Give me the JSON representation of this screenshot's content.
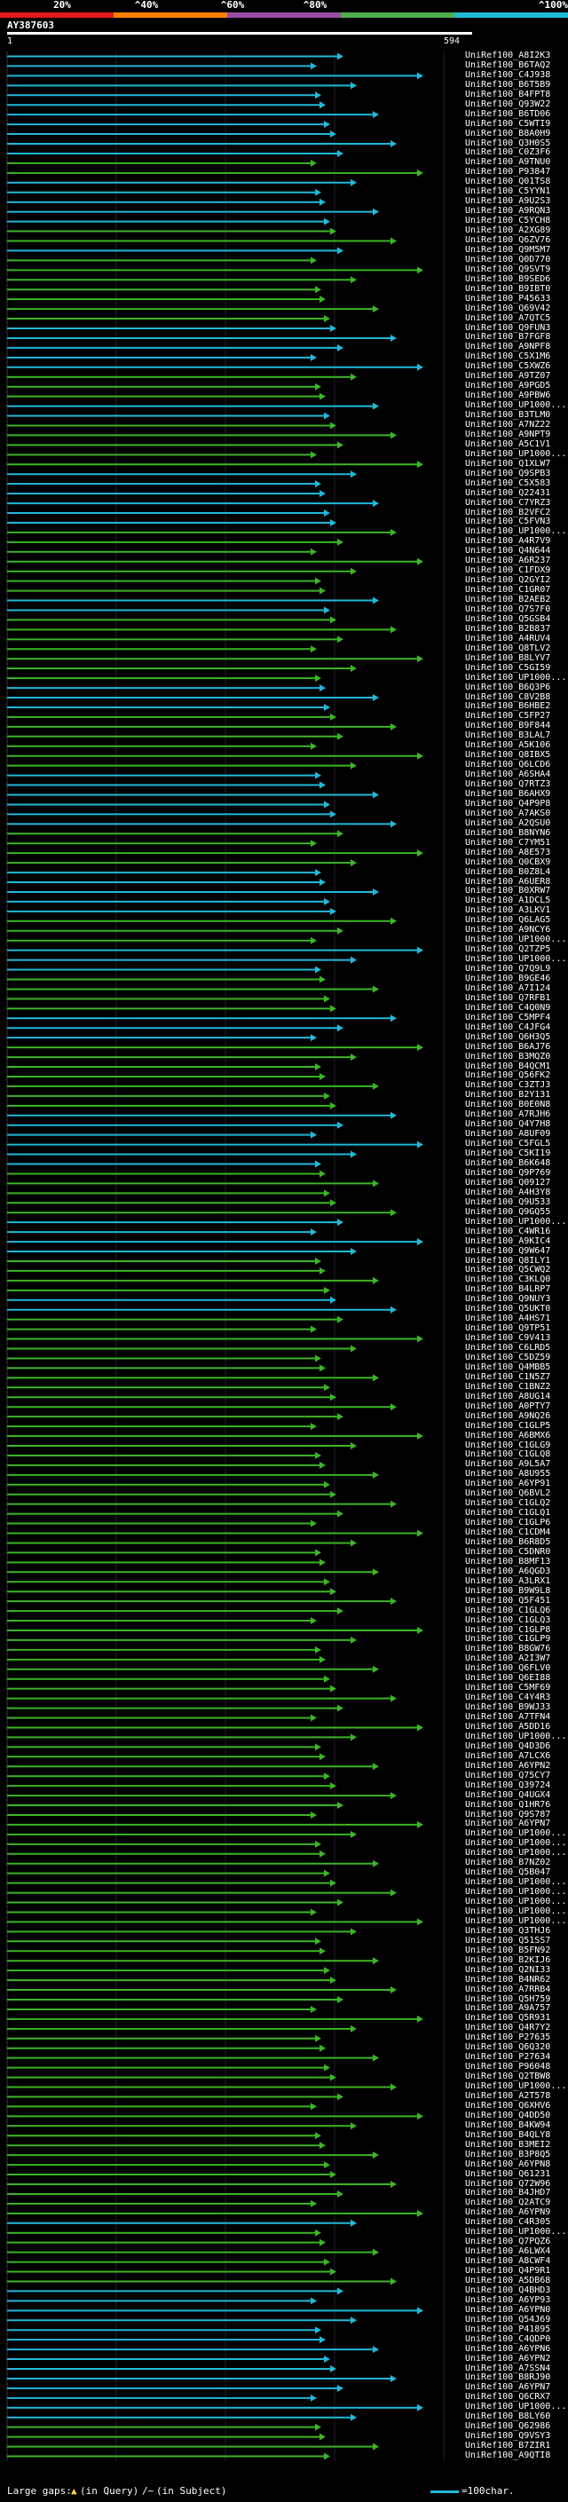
{
  "header": {
    "scale_labels": [
      "20%",
      "^40%",
      "^60%",
      "^80%",
      "^100%"
    ],
    "scale_colors": [
      "#e41a1c",
      "#ff7f00",
      "#984ea3",
      "#4daf4a",
      "#21b9d9"
    ],
    "query_id": "AY387603",
    "ruler_start": "1",
    "ruler_end": "594"
  },
  "colors": {
    "cyan": "#21b9d9",
    "green": "#3cb526",
    "query": "#ffffff"
  },
  "hits": [
    {
      "id": "UniRef100_A8I2K3",
      "pct": 100
    },
    {
      "id": "UniRef100_B6TAQ2",
      "pct": 100
    },
    {
      "id": "UniRef100_C4J938",
      "pct": 100
    },
    {
      "id": "UniRef100_B6T5B9",
      "pct": 100
    },
    {
      "id": "UniRef100_B4FPT8",
      "pct": 100
    },
    {
      "id": "UniRef100_Q93W22",
      "pct": 100
    },
    {
      "id": "UniRef100_B6TD06",
      "pct": 100
    },
    {
      "id": "UniRef100_C5WTI9",
      "pct": 100
    },
    {
      "id": "UniRef100_B8A0H9",
      "pct": 100
    },
    {
      "id": "UniRef100_Q3H0S5",
      "pct": 100
    },
    {
      "id": "UniRef100_C0Z3F6",
      "pct": 100
    },
    {
      "id": "UniRef100_A9TNU0",
      "pct": 80
    },
    {
      "id": "UniRef100_P93847",
      "pct": 80
    },
    {
      "id": "UniRef100_Q01TS8",
      "pct": 100
    },
    {
      "id": "UniRef100_C5YYN1",
      "pct": 100
    },
    {
      "id": "UniRef100_A9U2S3",
      "pct": 100
    },
    {
      "id": "UniRef100_A9RQN3",
      "pct": 100
    },
    {
      "id": "UniRef100_C5YCH8",
      "pct": 100
    },
    {
      "id": "UniRef100_A2XG89",
      "pct": 80
    },
    {
      "id": "UniRef100_Q6ZV76",
      "pct": 80
    },
    {
      "id": "UniRef100_Q9M5M7",
      "pct": 100
    },
    {
      "id": "UniRef100_Q0D770",
      "pct": 80
    },
    {
      "id": "UniRef100_Q9SVT9",
      "pct": 80
    },
    {
      "id": "UniRef100_B9SED6",
      "pct": 80
    },
    {
      "id": "UniRef100_B9IBT0",
      "pct": 80
    },
    {
      "id": "UniRef100_P45633",
      "pct": 80
    },
    {
      "id": "UniRef100_Q69V42",
      "pct": 80
    },
    {
      "id": "UniRef100_A7QTC5",
      "pct": 80
    },
    {
      "id": "UniRef100_Q9FUN3",
      "pct": 100
    },
    {
      "id": "UniRef100_B7FGF8",
      "pct": 100
    },
    {
      "id": "UniRef100_A9NPF8",
      "pct": 100
    },
    {
      "id": "UniRef100_C5X1M6",
      "pct": 100
    },
    {
      "id": "UniRef100_C5XWZ6",
      "pct": 100
    },
    {
      "id": "UniRef100_A9TZ07",
      "pct": 80
    },
    {
      "id": "UniRef100_A9PGD5",
      "pct": 80
    },
    {
      "id": "UniRef100_A9PBW6",
      "pct": 80
    },
    {
      "id": "UniRef100_UP1000...",
      "pct": 100
    },
    {
      "id": "UniRef100_B3TLM0",
      "pct": 100
    },
    {
      "id": "UniRef100_A7NZ22",
      "pct": 80
    },
    {
      "id": "UniRef100_A9NPT9",
      "pct": 80
    },
    {
      "id": "UniRef100_A5C1V1",
      "pct": 80
    },
    {
      "id": "UniRef100_UP1000...",
      "pct": 80
    },
    {
      "id": "UniRef100_Q1XLW7",
      "pct": 80
    },
    {
      "id": "UniRef100_Q9SPB3",
      "pct": 100
    },
    {
      "id": "UniRef100_C5X583",
      "pct": 100
    },
    {
      "id": "UniRef100_Q22431",
      "pct": 100
    },
    {
      "id": "UniRef100_C7YRZ3",
      "pct": 100
    },
    {
      "id": "UniRef100_B2VFC2",
      "pct": 100
    },
    {
      "id": "UniRef100_C5FVN3",
      "pct": 100
    },
    {
      "id": "UniRef100_UP1000...",
      "pct": 80
    },
    {
      "id": "UniRef100_A4R7V9",
      "pct": 80
    },
    {
      "id": "UniRef100_Q4N644",
      "pct": 80
    },
    {
      "id": "UniRef100_A6R237",
      "pct": 80
    },
    {
      "id": "UniRef100_C1FDX9",
      "pct": 80
    },
    {
      "id": "UniRef100_Q2GYI2",
      "pct": 80
    },
    {
      "id": "UniRef100_C1GR07",
      "pct": 80
    },
    {
      "id": "UniRef100_B2AEB2",
      "pct": 100
    },
    {
      "id": "UniRef100_Q7S7F0",
      "pct": 100
    },
    {
      "id": "UniRef100_Q5GSB4",
      "pct": 80
    },
    {
      "id": "UniRef100_B2B837",
      "pct": 80
    },
    {
      "id": "UniRef100_A4RUV4",
      "pct": 80
    },
    {
      "id": "UniRef100_Q8TLV2",
      "pct": 80
    },
    {
      "id": "UniRef100_B8LYV7",
      "pct": 80
    },
    {
      "id": "UniRef100_C5GI59",
      "pct": 80
    },
    {
      "id": "UniRef100_UP1000...",
      "pct": 80
    },
    {
      "id": "UniRef100_B6Q3P6",
      "pct": 100
    },
    {
      "id": "UniRef100_C8V2B8",
      "pct": 100
    },
    {
      "id": "UniRef100_B6HBE2",
      "pct": 100
    },
    {
      "id": "UniRef100_C5FP27",
      "pct": 80
    },
    {
      "id": "UniRef100_B9F844",
      "pct": 80
    },
    {
      "id": "UniRef100_B3LAL7",
      "pct": 80
    },
    {
      "id": "UniRef100_A5K106",
      "pct": 80
    },
    {
      "id": "UniRef100_Q8IBX5",
      "pct": 80
    },
    {
      "id": "UniRef100_Q6LCD6",
      "pct": 80
    },
    {
      "id": "UniRef100_A6SHA4",
      "pct": 100
    },
    {
      "id": "UniRef100_Q7RTZ3",
      "pct": 100
    },
    {
      "id": "UniRef100_B6AHX9",
      "pct": 100
    },
    {
      "id": "UniRef100_Q4P9P8",
      "pct": 100
    },
    {
      "id": "UniRef100_A7AKS0",
      "pct": 100
    },
    {
      "id": "UniRef100_A2QSU0",
      "pct": 100
    },
    {
      "id": "UniRef100_B8NYN6",
      "pct": 80
    },
    {
      "id": "UniRef100_C7YM51",
      "pct": 80
    },
    {
      "id": "UniRef100_A8E573",
      "pct": 80
    },
    {
      "id": "UniRef100_Q0CBX9",
      "pct": 80
    },
    {
      "id": "UniRef100_B0Z8L4",
      "pct": 100
    },
    {
      "id": "UniRef100_A6UER8",
      "pct": 100
    },
    {
      "id": "UniRef100_B0XRW7",
      "pct": 100
    },
    {
      "id": "UniRef100_A1DCL5",
      "pct": 100
    },
    {
      "id": "UniRef100_A3LKV1",
      "pct": 100
    },
    {
      "id": "UniRef100_Q6LAG5",
      "pct": 80
    },
    {
      "id": "UniRef100_A9NCY6",
      "pct": 80
    },
    {
      "id": "UniRef100_UP1000...",
      "pct": 80
    },
    {
      "id": "UniRef100_Q2TZP5",
      "pct": 100
    },
    {
      "id": "UniRef100_UP1000...",
      "pct": 100
    },
    {
      "id": "UniRef100_Q7Q9L9",
      "pct": 100
    },
    {
      "id": "UniRef100_B9GE46",
      "pct": 80
    },
    {
      "id": "UniRef100_A7I124",
      "pct": 80
    },
    {
      "id": "UniRef100_Q7RFB1",
      "pct": 80
    },
    {
      "id": "UniRef100_C4Q0N9",
      "pct": 80
    },
    {
      "id": "UniRef100_C5MPF4",
      "pct": 100
    },
    {
      "id": "UniRef100_C4JFG4",
      "pct": 100
    },
    {
      "id": "UniRef100_Q6H3Q5",
      "pct": 100
    },
    {
      "id": "UniRef100_B6AJ76",
      "pct": 80
    },
    {
      "id": "UniRef100_B3MQZ0",
      "pct": 80
    },
    {
      "id": "UniRef100_B4QCM1",
      "pct": 80
    },
    {
      "id": "UniRef100_Q56FK2",
      "pct": 80
    },
    {
      "id": "UniRef100_C3ZTJ3",
      "pct": 80
    },
    {
      "id": "UniRef100_B2Y131",
      "pct": 80
    },
    {
      "id": "UniRef100_B0E0N8",
      "pct": 80
    },
    {
      "id": "UniRef100_A7RJH6",
      "pct": 100
    },
    {
      "id": "UniRef100_Q4Y7H8",
      "pct": 100
    },
    {
      "id": "UniRef100_A8UF09",
      "pct": 100
    },
    {
      "id": "UniRef100_C5FGL5",
      "pct": 100
    },
    {
      "id": "UniRef100_C5KI19",
      "pct": 100
    },
    {
      "id": "UniRef100_B6K648",
      "pct": 100
    },
    {
      "id": "UniRef100_Q9P769",
      "pct": 80
    },
    {
      "id": "UniRef100_Q09127",
      "pct": 80
    },
    {
      "id": "UniRef100_A4H3Y8",
      "pct": 80
    },
    {
      "id": "UniRef100_Q9U533",
      "pct": 80
    },
    {
      "id": "UniRef100_Q9GQ55",
      "pct": 80
    },
    {
      "id": "UniRef100_UP1000...",
      "pct": 100
    },
    {
      "id": "UniRef100_C4WR16",
      "pct": 100
    },
    {
      "id": "UniRef100_A9KIC4",
      "pct": 100
    },
    {
      "id": "UniRef100_Q9W647",
      "pct": 100
    },
    {
      "id": "UniRef100_Q8ILY1",
      "pct": 80
    },
    {
      "id": "UniRef100_Q5CWQ2",
      "pct": 80
    },
    {
      "id": "UniRef100_C3KLQ0",
      "pct": 80
    },
    {
      "id": "UniRef100_B4LRP7",
      "pct": 80
    },
    {
      "id": "UniRef100_Q9NUY3",
      "pct": 100
    },
    {
      "id": "UniRef100_Q5UKT0",
      "pct": 100
    },
    {
      "id": "UniRef100_A4HS71",
      "pct": 80
    },
    {
      "id": "UniRef100_Q9TP51",
      "pct": 80
    },
    {
      "id": "UniRef100_C9V413",
      "pct": 80
    },
    {
      "id": "UniRef100_C6LRD5",
      "pct": 80
    },
    {
      "id": "UniRef100_C5DZ59",
      "pct": 80
    },
    {
      "id": "UniRef100_Q4MBB5",
      "pct": 80
    },
    {
      "id": "UniRef100_C1N5Z7",
      "pct": 80
    },
    {
      "id": "UniRef100_C1BNZ2",
      "pct": 80
    },
    {
      "id": "UniRef100_A8UG14",
      "pct": 80
    },
    {
      "id": "UniRef100_A0PTY7",
      "pct": 80
    },
    {
      "id": "UniRef100_A9NQ26",
      "pct": 80
    },
    {
      "id": "UniRef100_C1GLP5",
      "pct": 80
    },
    {
      "id": "UniRef100_A6BMX6",
      "pct": 80
    },
    {
      "id": "UniRef100_C1GLG9",
      "pct": 80
    },
    {
      "id": "UniRef100_C1GLQ8",
      "pct": 80
    },
    {
      "id": "UniRef100_A9L5A7",
      "pct": 80
    },
    {
      "id": "UniRef100_A8U955",
      "pct": 80
    },
    {
      "id": "UniRef100_A6YP91",
      "pct": 80
    },
    {
      "id": "UniRef100_Q6BVL2",
      "pct": 80
    },
    {
      "id": "UniRef100_C1GLQ2",
      "pct": 80
    },
    {
      "id": "UniRef100_C1GLQ1",
      "pct": 80
    },
    {
      "id": "UniRef100_C1GLP6",
      "pct": 80
    },
    {
      "id": "UniRef100_C1CDM4",
      "pct": 80
    },
    {
      "id": "UniRef100_B6R8D5",
      "pct": 80
    },
    {
      "id": "UniRef100_C5DNR0",
      "pct": 80
    },
    {
      "id": "UniRef100_B8MF13",
      "pct": 80
    },
    {
      "id": "UniRef100_A6QGD3",
      "pct": 80
    },
    {
      "id": "UniRef100_A3LRX1",
      "pct": 80
    },
    {
      "id": "UniRef100_B9W9L8",
      "pct": 80
    },
    {
      "id": "UniRef100_Q5F451",
      "pct": 80
    },
    {
      "id": "UniRef100_C1GLQ6",
      "pct": 80
    },
    {
      "id": "UniRef100_C1GLQ3",
      "pct": 80
    },
    {
      "id": "UniRef100_C1GLP8",
      "pct": 80
    },
    {
      "id": "UniRef100_C1GLP9",
      "pct": 80
    },
    {
      "id": "UniRef100_B8GW76",
      "pct": 80
    },
    {
      "id": "UniRef100_A2I3W7",
      "pct": 80
    },
    {
      "id": "UniRef100_Q6FLV0",
      "pct": 80
    },
    {
      "id": "UniRef100_Q6EI88",
      "pct": 80
    },
    {
      "id": "UniRef100_C5MF69",
      "pct": 80
    },
    {
      "id": "UniRef100_C4Y4R3",
      "pct": 80
    },
    {
      "id": "UniRef100_B9WJ33",
      "pct": 80
    },
    {
      "id": "UniRef100_A7TFN4",
      "pct": 80
    },
    {
      "id": "UniRef100_A5DD16",
      "pct": 80
    },
    {
      "id": "UniRef100_UP1000...",
      "pct": 80
    },
    {
      "id": "UniRef100_Q4D3D6",
      "pct": 80
    },
    {
      "id": "UniRef100_A7LCX6",
      "pct": 80
    },
    {
      "id": "UniRef100_A6YPN2",
      "pct": 80
    },
    {
      "id": "UniRef100_Q75CY7",
      "pct": 80
    },
    {
      "id": "UniRef100_Q39724",
      "pct": 80
    },
    {
      "id": "UniRef100_Q4UGX4",
      "pct": 80
    },
    {
      "id": "UniRef100_Q1HR76",
      "pct": 80
    },
    {
      "id": "UniRef100_Q9S787",
      "pct": 80
    },
    {
      "id": "UniRef100_A6YPN7",
      "pct": 80
    },
    {
      "id": "UniRef100_UP1000...",
      "pct": 80
    },
    {
      "id": "UniRef100_UP1000...",
      "pct": 80
    },
    {
      "id": "UniRef100_UP1000...",
      "pct": 80
    },
    {
      "id": "UniRef100_B7NZ02",
      "pct": 80
    },
    {
      "id": "UniRef100_Q5B047",
      "pct": 80
    },
    {
      "id": "UniRef100_UP1000...",
      "pct": 80
    },
    {
      "id": "UniRef100_UP1000...",
      "pct": 80
    },
    {
      "id": "UniRef100_UP1000...",
      "pct": 80
    },
    {
      "id": "UniRef100_UP1000...",
      "pct": 80
    },
    {
      "id": "UniRef100_UP1000...",
      "pct": 80
    },
    {
      "id": "UniRef100_Q3THJ6",
      "pct": 80
    },
    {
      "id": "UniRef100_Q51SS7",
      "pct": 80
    },
    {
      "id": "UniRef100_B5FN92",
      "pct": 80
    },
    {
      "id": "UniRef100_B2KIJ6",
      "pct": 80
    },
    {
      "id": "UniRef100_Q2NI33",
      "pct": 80
    },
    {
      "id": "UniRef100_B4NR62",
      "pct": 80
    },
    {
      "id": "UniRef100_A7RRB4",
      "pct": 80
    },
    {
      "id": "UniRef100_Q5H759",
      "pct": 80
    },
    {
      "id": "UniRef100_A9A757",
      "pct": 80
    },
    {
      "id": "UniRef100_Q5R931",
      "pct": 80
    },
    {
      "id": "UniRef100_Q4R7Y2",
      "pct": 80
    },
    {
      "id": "UniRef100_P27635",
      "pct": 80
    },
    {
      "id": "UniRef100_Q6Q320",
      "pct": 80
    },
    {
      "id": "UniRef100_P27634",
      "pct": 80
    },
    {
      "id": "UniRef100_P96048",
      "pct": 80
    },
    {
      "id": "UniRef100_Q2TBW8",
      "pct": 80
    },
    {
      "id": "UniRef100_UP1000...",
      "pct": 80
    },
    {
      "id": "UniRef100_A2T578",
      "pct": 80
    },
    {
      "id": "UniRef100_Q6XHV6",
      "pct": 80
    },
    {
      "id": "UniRef100_Q4DD50",
      "pct": 80
    },
    {
      "id": "UniRef100_B4KW94",
      "pct": 80
    },
    {
      "id": "UniRef100_B4QLY8",
      "pct": 80
    },
    {
      "id": "UniRef100_B3MEI2",
      "pct": 80
    },
    {
      "id": "UniRef100_B3P8Q5",
      "pct": 80
    },
    {
      "id": "UniRef100_A6YPN8",
      "pct": 80
    },
    {
      "id": "UniRef100_Q61231",
      "pct": 80
    },
    {
      "id": "UniRef100_Q72W96",
      "pct": 80
    },
    {
      "id": "UniRef100_B4JHD7",
      "pct": 80
    },
    {
      "id": "UniRef100_Q2ATC9",
      "pct": 80
    },
    {
      "id": "UniRef100_A6YPN9",
      "pct": 80
    },
    {
      "id": "UniRef100_C4R305",
      "pct": 100
    },
    {
      "id": "UniRef100_UP1000...",
      "pct": 80
    },
    {
      "id": "UniRef100_Q7PQZ6",
      "pct": 80
    },
    {
      "id": "UniRef100_A6LWX4",
      "pct": 80
    },
    {
      "id": "UniRef100_A8CWF4",
      "pct": 80
    },
    {
      "id": "UniRef100_Q4P9R1",
      "pct": 80
    },
    {
      "id": "UniRef100_A5DB68",
      "pct": 80
    },
    {
      "id": "UniRef100_Q4BHD3",
      "pct": 100
    },
    {
      "id": "UniRef100_A6YP93",
      "pct": 100
    },
    {
      "id": "UniRef100_A6YPN0",
      "pct": 100
    },
    {
      "id": "UniRef100_Q54J69",
      "pct": 100
    },
    {
      "id": "UniRef100_P41895",
      "pct": 100
    },
    {
      "id": "UniRef100_C4QDP0",
      "pct": 100
    },
    {
      "id": "UniRef100_A6YPN6",
      "pct": 100
    },
    {
      "id": "UniRef100_A6YPN2",
      "pct": 100
    },
    {
      "id": "UniRef100_A7SSN4",
      "pct": 100
    },
    {
      "id": "UniRef100_B8RJ90",
      "pct": 100
    },
    {
      "id": "UniRef100_A6YPN7",
      "pct": 100
    },
    {
      "id": "UniRef100_Q6CRX7",
      "pct": 100
    },
    {
      "id": "UniRef100_UP1000...",
      "pct": 100
    },
    {
      "id": "UniRef100_B8LY60",
      "pct": 100
    },
    {
      "id": "UniRef100_Q62986",
      "pct": 80
    },
    {
      "id": "UniRef100_Q9VSY3",
      "pct": 80
    },
    {
      "id": "UniRef100_B7ZIR1",
      "pct": 80
    },
    {
      "id": "UniRef100_A9QTI8",
      "pct": 80
    }
  ],
  "legend": {
    "large_gaps": "Large gaps:",
    "in_query": "(in Query)",
    "in_subject": "(in Subject)",
    "scale_note": "=100char."
  }
}
